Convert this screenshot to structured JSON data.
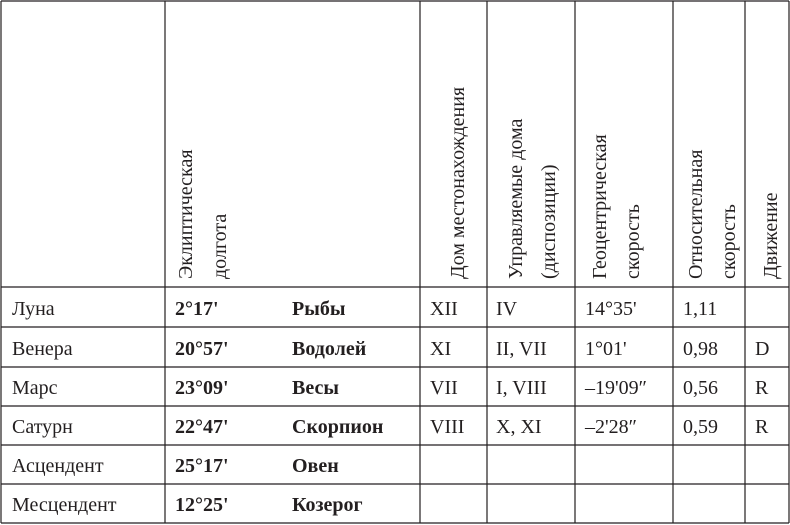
{
  "table": {
    "headers": [
      [
        "Эклиптическая",
        "долгота"
      ],
      [
        "Дом местонахождения"
      ],
      [
        "Управляемые дома",
        "(диспозиции)"
      ],
      [
        "Геоцентрическая",
        "скорость"
      ],
      [
        "Относительная",
        "скорость"
      ],
      [
        "Движение"
      ]
    ],
    "rows": [
      [
        "Луна",
        "2°17'",
        "Рыбы",
        "XII",
        "IV",
        "14°35'",
        "1,11",
        null
      ],
      [
        "Венера",
        "20°57'",
        "Водолей",
        "XI",
        "II, VII",
        "1°01'",
        "0,98",
        "D"
      ],
      [
        "Марс",
        "23°09'",
        "Весы",
        "VII",
        "I, VIII",
        "–19'09″",
        "0,56",
        "R"
      ],
      [
        "Сатурн",
        "22°47'",
        "Скорпион",
        "VIII",
        "X, XI",
        "–2'28″",
        "0,59",
        "R"
      ],
      [
        "Асцендент",
        "25°17'",
        "Овен",
        null,
        null,
        null,
        null,
        null
      ],
      [
        "Месцендент",
        "12°25'",
        "Козерог",
        null,
        null,
        null,
        null,
        null
      ]
    ]
  }
}
